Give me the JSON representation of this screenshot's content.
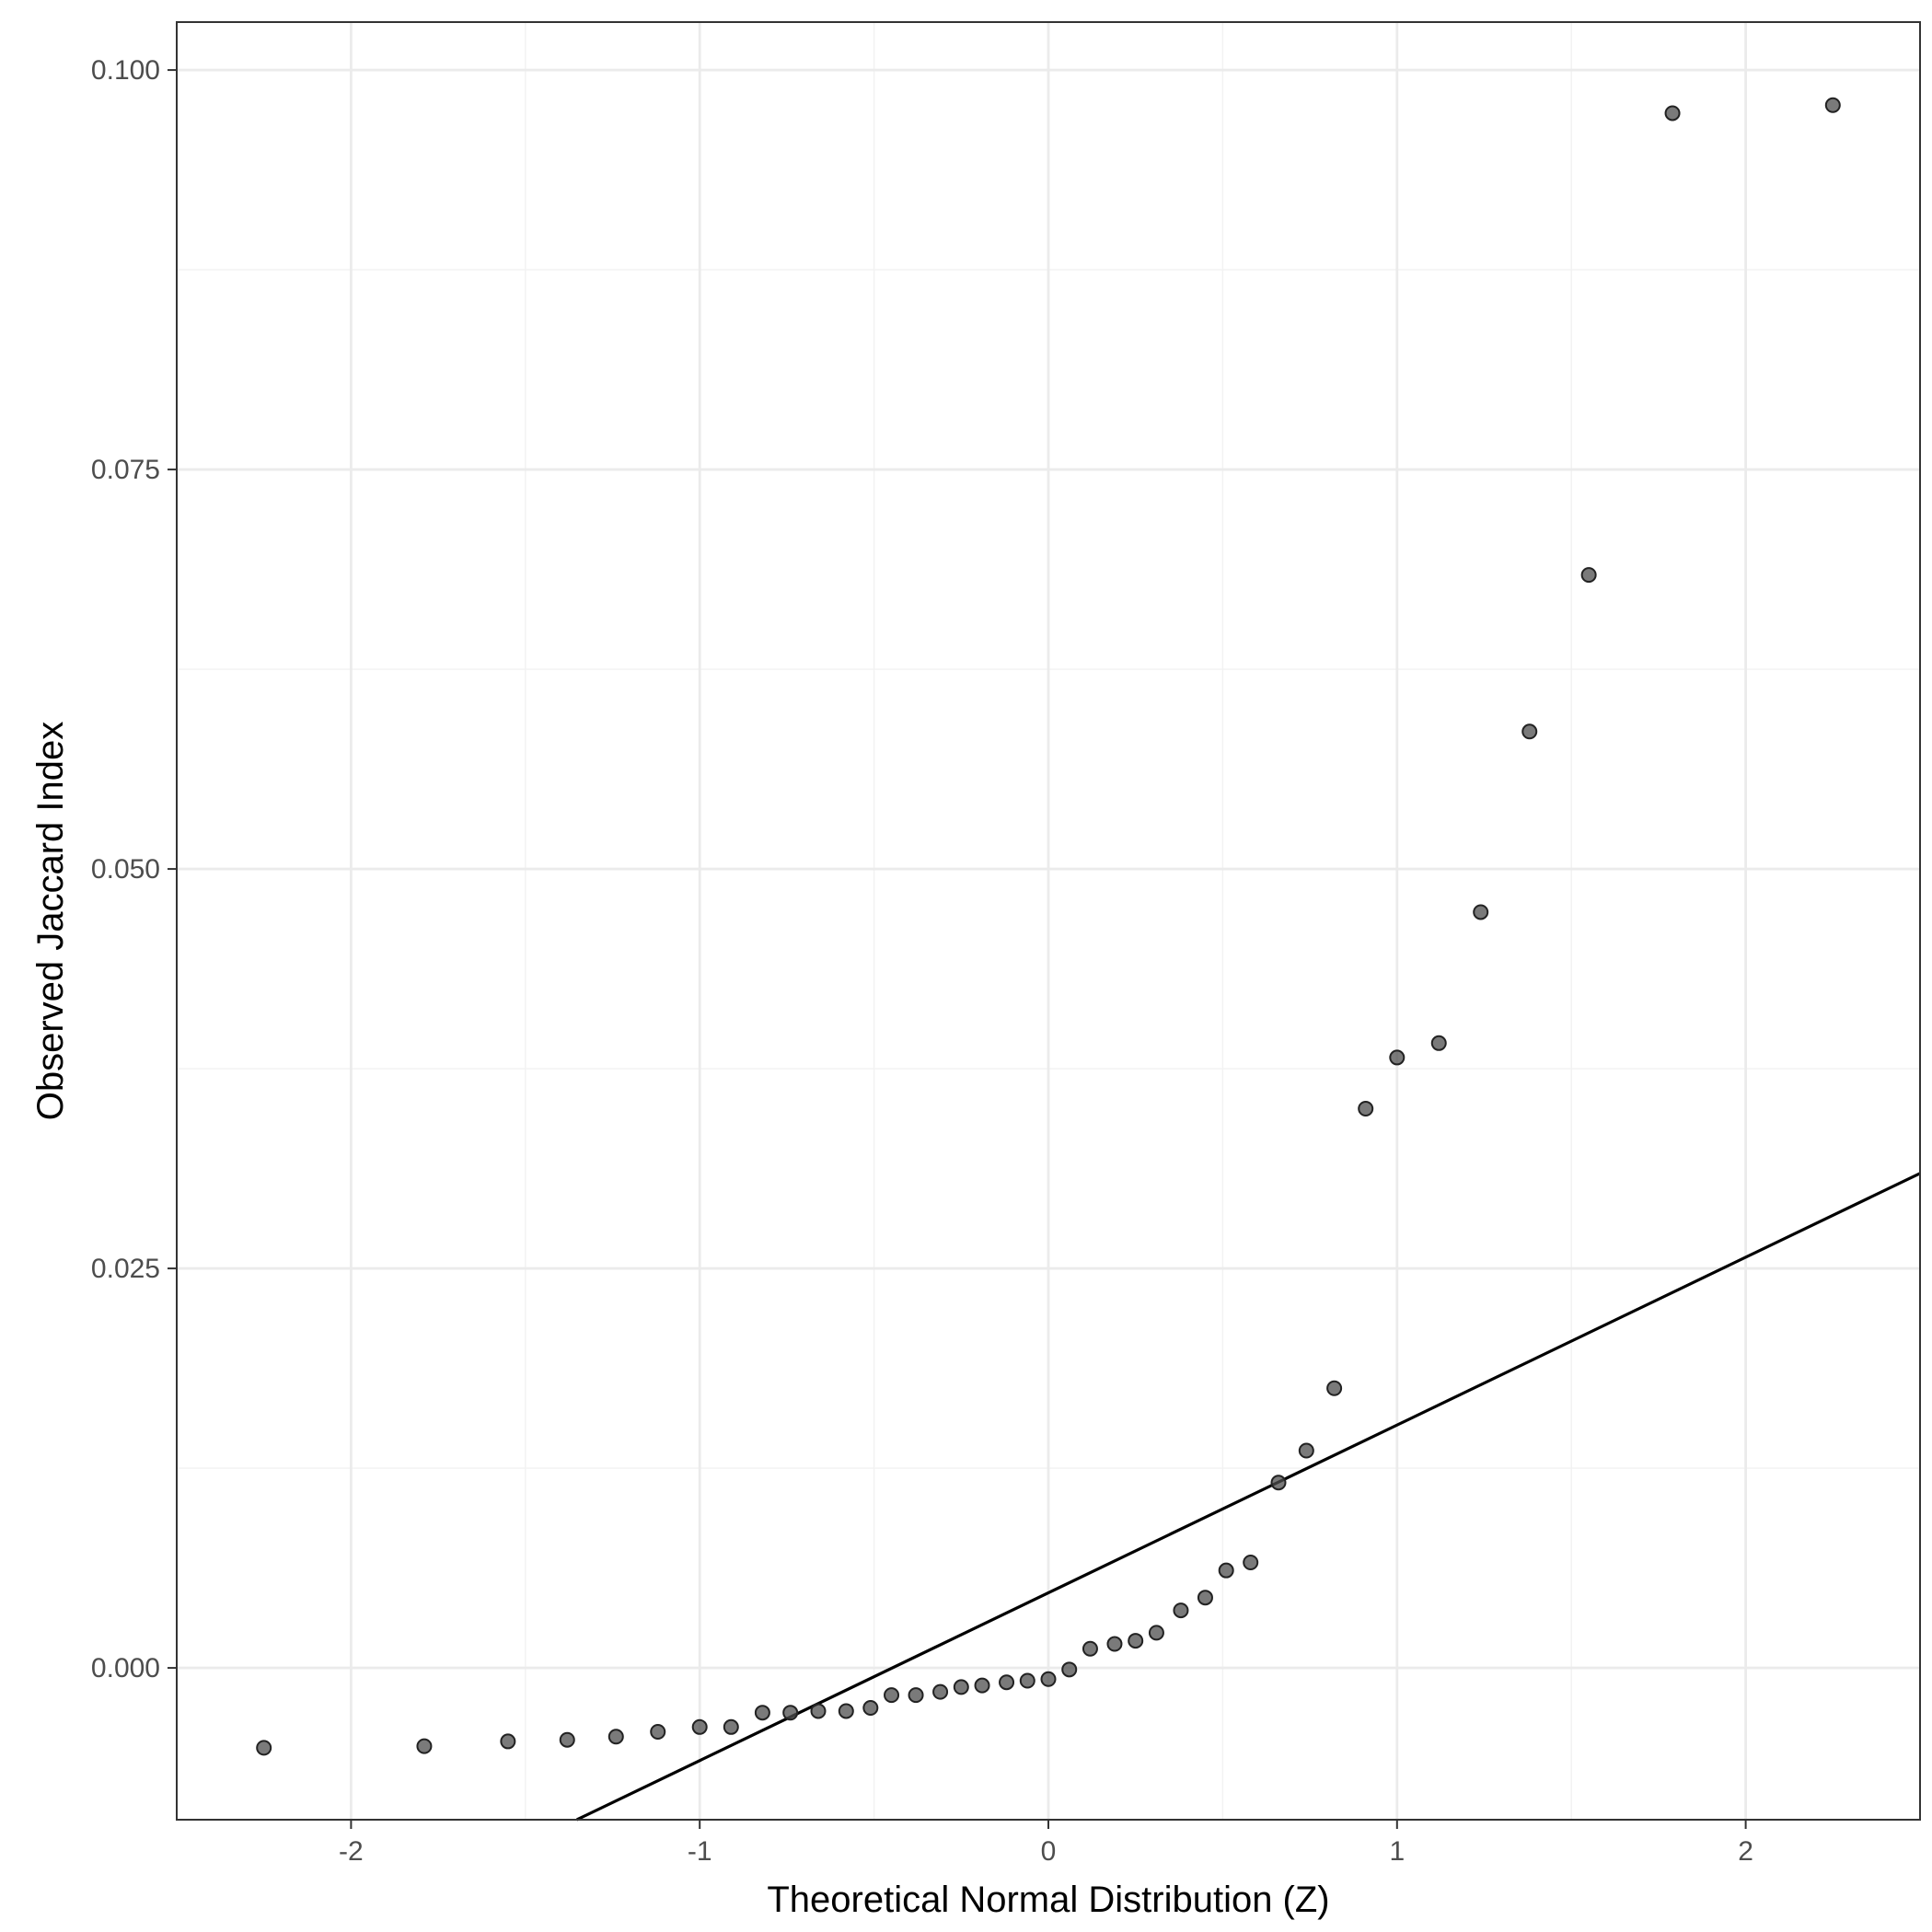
{
  "chart_data": {
    "type": "scatter",
    "title": "",
    "xlabel": "Theoretical Normal Distribution (Z)",
    "ylabel": "Observed Jaccard Index",
    "xlim": [
      -2.5,
      2.5
    ],
    "ylim": [
      -0.0095,
      0.103
    ],
    "grid": true,
    "x_ticks": [
      -2,
      -1,
      0,
      1,
      2
    ],
    "x_tick_labels": [
      "-2",
      "-1",
      "0",
      "1",
      "2"
    ],
    "y_ticks": [
      0.0,
      0.025,
      0.05,
      0.075,
      0.1
    ],
    "y_tick_labels": [
      "0.000",
      "0.025",
      "0.050",
      "0.075",
      "0.100"
    ],
    "reference_line": {
      "intercept": 0.0047,
      "slope": 0.0105
    },
    "point_color": "#4d4d4d",
    "line_color": "#000000",
    "points": [
      {
        "x": -2.25,
        "y": -0.005
      },
      {
        "x": -1.79,
        "y": -0.0049
      },
      {
        "x": -1.55,
        "y": -0.0046
      },
      {
        "x": -1.38,
        "y": -0.0045
      },
      {
        "x": -1.24,
        "y": -0.0043
      },
      {
        "x": -1.12,
        "y": -0.004
      },
      {
        "x": -1.0,
        "y": -0.0037
      },
      {
        "x": -0.91,
        "y": -0.0037
      },
      {
        "x": -0.82,
        "y": -0.0028
      },
      {
        "x": -0.74,
        "y": -0.0028
      },
      {
        "x": -0.66,
        "y": -0.0027
      },
      {
        "x": -0.58,
        "y": -0.0027
      },
      {
        "x": -0.51,
        "y": -0.0025
      },
      {
        "x": -0.45,
        "y": -0.0017
      },
      {
        "x": -0.38,
        "y": -0.0017
      },
      {
        "x": -0.31,
        "y": -0.0015
      },
      {
        "x": -0.25,
        "y": -0.0012
      },
      {
        "x": -0.19,
        "y": -0.0011
      },
      {
        "x": -0.12,
        "y": -0.0009
      },
      {
        "x": -0.06,
        "y": -0.0008
      },
      {
        "x": 0.0,
        "y": -0.0007
      },
      {
        "x": 0.06,
        "y": -0.0001
      },
      {
        "x": 0.12,
        "y": 0.0012
      },
      {
        "x": 0.19,
        "y": 0.0015
      },
      {
        "x": 0.25,
        "y": 0.0017
      },
      {
        "x": 0.31,
        "y": 0.0022
      },
      {
        "x": 0.38,
        "y": 0.0036
      },
      {
        "x": 0.45,
        "y": 0.0044
      },
      {
        "x": 0.51,
        "y": 0.0061
      },
      {
        "x": 0.58,
        "y": 0.0066
      },
      {
        "x": 0.66,
        "y": 0.0116
      },
      {
        "x": 0.74,
        "y": 0.0136
      },
      {
        "x": 0.82,
        "y": 0.0175
      },
      {
        "x": 0.91,
        "y": 0.035
      },
      {
        "x": 1.0,
        "y": 0.0382
      },
      {
        "x": 1.12,
        "y": 0.0391
      },
      {
        "x": 1.24,
        "y": 0.0473
      },
      {
        "x": 1.38,
        "y": 0.0586
      },
      {
        "x": 1.55,
        "y": 0.0684
      },
      {
        "x": 1.79,
        "y": 0.0973
      },
      {
        "x": 2.25,
        "y": 0.0978
      }
    ]
  }
}
